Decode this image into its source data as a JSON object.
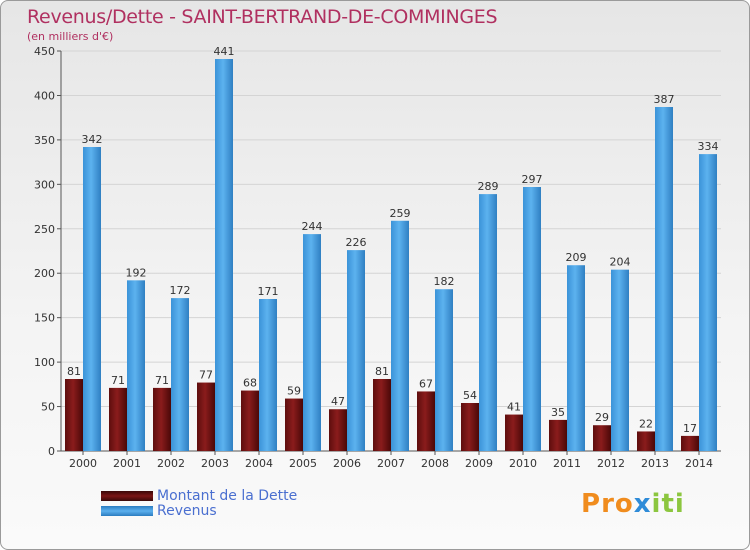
{
  "title": "Revenus/Dette - SAINT-BERTRAND-DE-COMMINGES",
  "subtitle": "(en milliers d'€)",
  "colors": {
    "dette": "#7a1515",
    "revenus": "#3f9ade",
    "grid": "#d4d4d4",
    "title": "#b03060",
    "legend_text": "#4a6fd0"
  },
  "logo": {
    "text": "Proxiti"
  },
  "chart_data": {
    "type": "bar",
    "title": "Revenus/Dette - SAINT-BERTRAND-DE-COMMINGES",
    "subtitle": "(en milliers d'€)",
    "categories": [
      "2000",
      "2001",
      "2002",
      "2003",
      "2004",
      "2005",
      "2006",
      "2007",
      "2008",
      "2009",
      "2010",
      "2011",
      "2012",
      "2013",
      "2014"
    ],
    "series": [
      {
        "name": "Montant de la Dette",
        "values": [
          81,
          71,
          71,
          77,
          68,
          59,
          47,
          81,
          67,
          54,
          41,
          35,
          29,
          22,
          17
        ]
      },
      {
        "name": "Revenus",
        "values": [
          342,
          192,
          172,
          441,
          171,
          244,
          226,
          259,
          182,
          289,
          297,
          209,
          204,
          387,
          334
        ]
      }
    ],
    "ylim": [
      0,
      450
    ],
    "yticks": [
      0,
      50,
      100,
      150,
      200,
      250,
      300,
      350,
      400,
      450
    ],
    "grid": true,
    "legend_position": "bottom-left",
    "xlabel": "",
    "ylabel": ""
  }
}
